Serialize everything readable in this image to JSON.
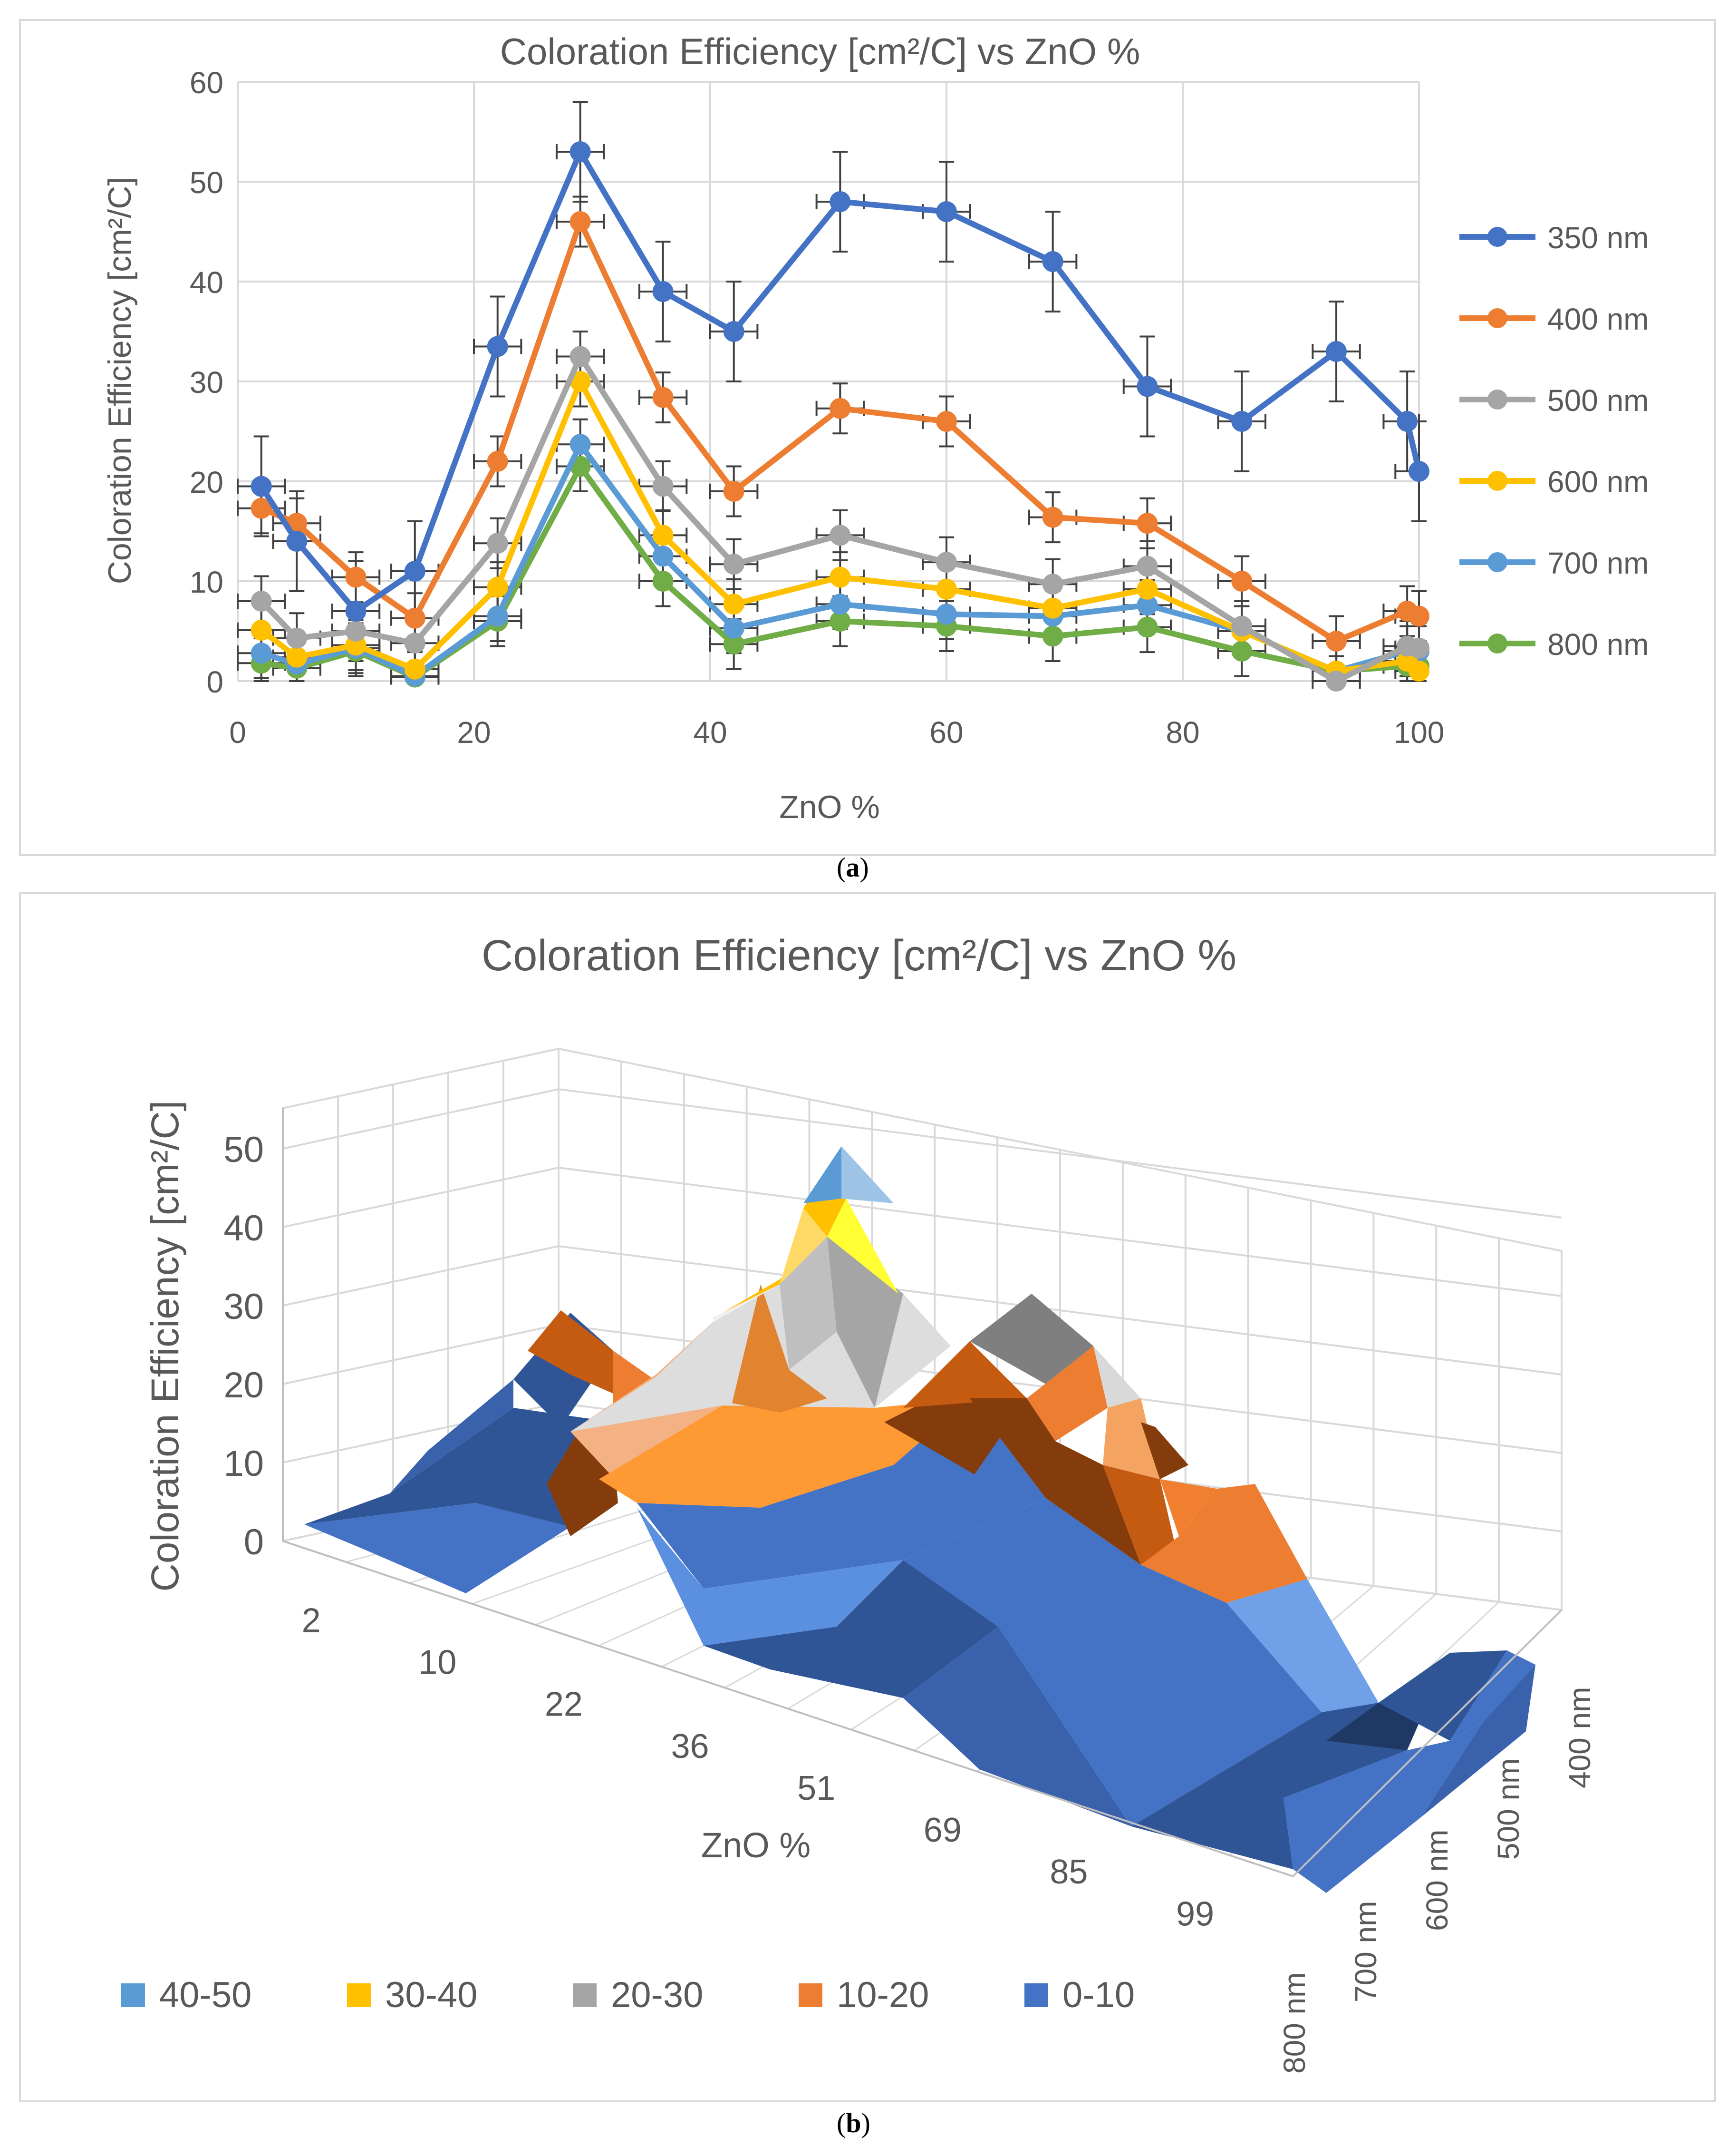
{
  "colors": {
    "s350": "#4472C4",
    "s400": "#ED7D31",
    "s500": "#A5A5A5",
    "s600": "#FFC000",
    "s700": "#5B9BD5",
    "s800": "#70AD47",
    "grid": "#D9D9D9",
    "text": "#595959",
    "errbar": "#404040",
    "band_40_50": "#5B9BD5",
    "band_30_40": "#FFC000",
    "band_20_30": "#A5A5A5",
    "band_10_20": "#ED7D31",
    "band_0_10": "#4472C4"
  },
  "panel_a": {
    "caption": "a",
    "chart_data": {
      "type": "line",
      "title": "Coloration Efficiency [cm²/C] vs ZnO %",
      "xlabel": "ZnO %",
      "ylabel": "Coloration Efficiency [cm²/C]",
      "xlim": [
        0,
        100
      ],
      "ylim": [
        0,
        60
      ],
      "xticks": [
        0,
        20,
        40,
        60,
        80,
        100
      ],
      "yticks": [
        0,
        10,
        20,
        30,
        40,
        50,
        60
      ],
      "grid": true,
      "legend_position": "right",
      "x": [
        2,
        5,
        10,
        15,
        22,
        29,
        36,
        42,
        51,
        60,
        69,
        77,
        85,
        93,
        99,
        100
      ],
      "x_error": 2,
      "series": [
        {
          "name": "350 nm",
          "color_key": "s350",
          "values": [
            19.5,
            14,
            7,
            11,
            33.5,
            53,
            39,
            35,
            48,
            47,
            42,
            29.5,
            26,
            33,
            26,
            21
          ],
          "y_error": 5
        },
        {
          "name": "400 nm",
          "color_key": "s400",
          "values": [
            17.3,
            15.8,
            10.4,
            6.3,
            22,
            46,
            28.4,
            19,
            27.3,
            26,
            16.4,
            15.8,
            10,
            4,
            7,
            6.5
          ],
          "y_error": 2.5
        },
        {
          "name": "500 nm",
          "color_key": "s500",
          "values": [
            8,
            4.3,
            5,
            3.8,
            13.8,
            32.5,
            19.5,
            11.7,
            14.6,
            11.9,
            9.7,
            11.5,
            5.5,
            0,
            3.5,
            3.3
          ],
          "y_error": 2.5
        },
        {
          "name": "600 nm",
          "color_key": "s600",
          "values": [
            5.1,
            2.4,
            3.6,
            1.2,
            9.4,
            30,
            14.6,
            7.7,
            10.4,
            9.2,
            7.3,
            9.2,
            5,
            1,
            2,
            1
          ],
          "y_error": 2.5
        },
        {
          "name": "700 nm",
          "color_key": "s700",
          "values": [
            2.8,
            1.7,
            3.3,
            0.5,
            6.5,
            23.7,
            12.5,
            5.3,
            7.7,
            6.7,
            6.5,
            7.6,
            5,
            1,
            3,
            3
          ],
          "y_error": 2.5
        },
        {
          "name": "800 nm",
          "color_key": "s800",
          "values": [
            1.8,
            1.3,
            3,
            0.4,
            6,
            21.5,
            10,
            3.7,
            6,
            5.5,
            4.5,
            5.4,
            3,
            1,
            1.5,
            1.5
          ],
          "y_error": 2.5
        }
      ]
    }
  },
  "panel_b": {
    "caption": "b",
    "chart_data": {
      "type": "surface",
      "title": "Coloration Efficiency [cm²/C] vs ZnO %",
      "xlabel": "ZnO %",
      "ylabel": "Coloration Efficiency [cm²/C]",
      "zlim": [
        0,
        50
      ],
      "zticks": [
        0,
        10,
        20,
        30,
        40,
        50
      ],
      "categories": [
        "2",
        "5",
        "10",
        "15",
        "22",
        "29",
        "36",
        "42",
        "51",
        "60",
        "69",
        "77",
        "85",
        "93",
        "99",
        "100"
      ],
      "category_labels": [
        "2",
        "10",
        "22",
        "36",
        "51",
        "69",
        "85",
        "99"
      ],
      "depth_series": [
        "400 nm",
        "500 nm",
        "600 nm",
        "700 nm",
        "800 nm"
      ],
      "depth_labels": [
        "800 nm",
        "700 nm",
        "600 nm",
        "500 nm",
        "400 nm"
      ],
      "legend": [
        {
          "label": "40-50",
          "color_key": "band_40_50"
        },
        {
          "label": "30-40",
          "color_key": "band_30_40"
        },
        {
          "label": "20-30",
          "color_key": "band_20_30"
        },
        {
          "label": "10-20",
          "color_key": "band_10_20"
        },
        {
          "label": "0-10",
          "color_key": "band_0_10"
        }
      ]
    }
  }
}
